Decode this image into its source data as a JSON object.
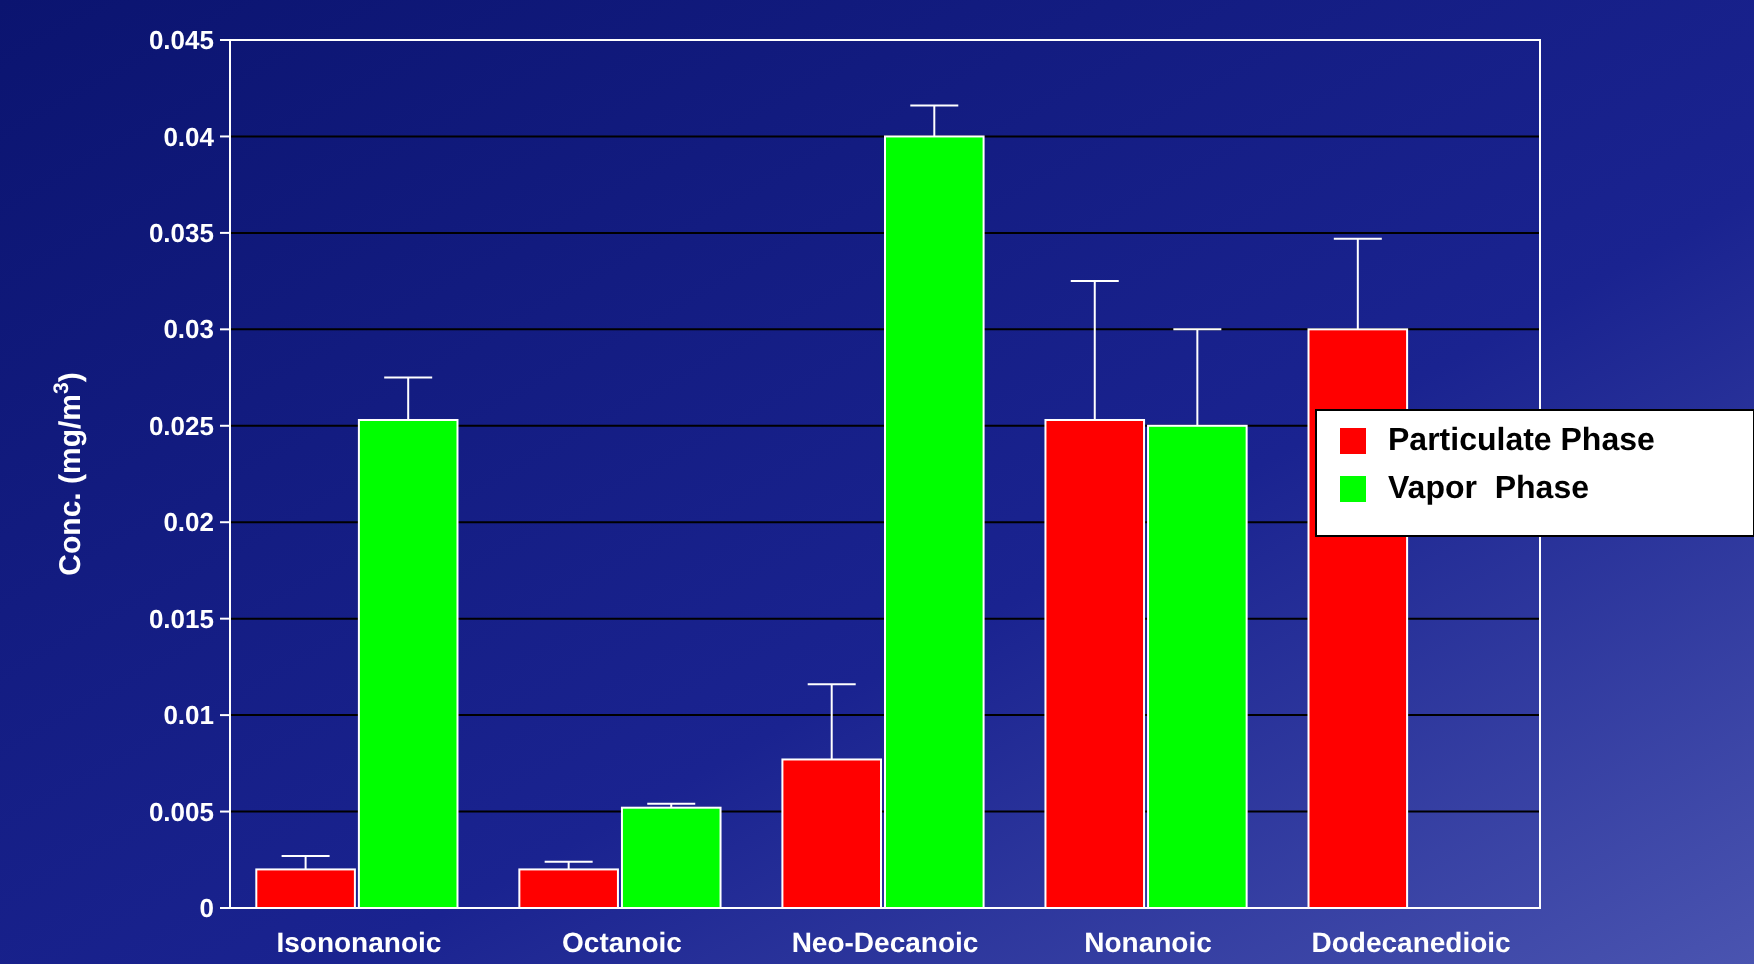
{
  "chart_data": {
    "type": "bar",
    "ylabel": "Conc. (mg/m$^{3}$)",
    "categories": [
      "Isononanoic",
      "Octanoic",
      "Neo-Decanoic",
      "Nonanoic",
      "Dodecanedioic"
    ],
    "series": [
      {
        "name": "Particulate Phase",
        "color": "#ff0000",
        "values": [
          0.002,
          0.002,
          0.0077,
          0.0253,
          0.03
        ],
        "errors": [
          [
            0.002,
            0.0027
          ],
          [
            0.002,
            0.0024
          ],
          [
            0.0077,
            0.0116
          ],
          [
            0.0253,
            0.0325
          ],
          [
            0.03,
            0.0347
          ]
        ]
      },
      {
        "name": "Vapor  Phase",
        "color": "#00ff00",
        "values": [
          0.0253,
          0.0052,
          0.04,
          0.025,
          null
        ],
        "errors": [
          [
            0.0253,
            0.0275
          ],
          [
            0.0052,
            0.0054
          ],
          [
            0.04,
            0.0416
          ],
          [
            0.025,
            0.03
          ],
          null
        ]
      }
    ],
    "ylim": [
      0,
      0.045
    ],
    "yticks": [
      0,
      0.005,
      0.01,
      0.015,
      0.02,
      0.025,
      0.03,
      0.035,
      0.04,
      0.045
    ],
    "grid": "y",
    "legend": "right"
  }
}
